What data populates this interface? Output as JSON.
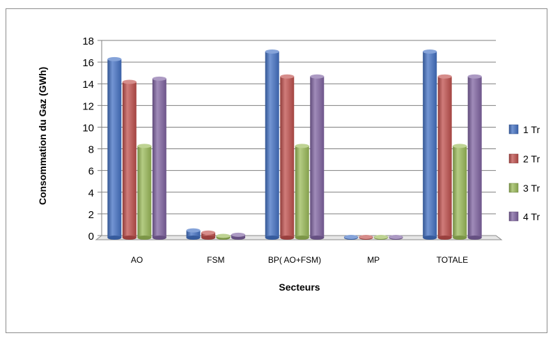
{
  "chart_data": {
    "type": "bar",
    "title": "",
    "xlabel": "Secteurs",
    "ylabel": "Consommation du Gaz (GWh)",
    "ylim": [
      0,
      18
    ],
    "yticks": [
      0,
      2,
      4,
      6,
      8,
      10,
      12,
      14,
      16,
      18
    ],
    "grid": true,
    "legend_position": "right",
    "categories": [
      "AO",
      "FSM",
      "BP( AO+FSM)",
      "MP",
      "TOTALE"
    ],
    "series": [
      {
        "name": "1 Tr",
        "color": "#4472c4",
        "values": [
          16.4,
          0.6,
          17.1,
          0.0,
          17.1
        ]
      },
      {
        "name": "2  Tr",
        "color": "#c0504d",
        "values": [
          14.3,
          0.4,
          14.8,
          0.0,
          14.8
        ]
      },
      {
        "name": "3 Tr",
        "color": "#9bbb59",
        "values": [
          8.4,
          0.1,
          8.4,
          0.0,
          8.4
        ]
      },
      {
        "name": "4 Tr",
        "color": "#8064a2",
        "values": [
          14.6,
          0.2,
          14.8,
          0.0,
          14.8
        ]
      }
    ]
  }
}
